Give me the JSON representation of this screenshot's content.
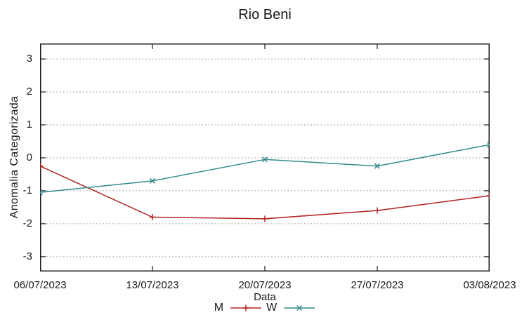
{
  "chart_data": {
    "type": "line",
    "title": "Rio Beni",
    "xlabel": "Data",
    "ylabel": "Anomalia Categorizada",
    "x": [
      "06/07/2023",
      "13/07/2023",
      "20/07/2023",
      "27/07/2023",
      "03/08/2023"
    ],
    "series": [
      {
        "name": "M",
        "marker": "plus",
        "color": "#b22222",
        "values": [
          -0.25,
          -1.8,
          -1.85,
          -1.6,
          -1.15
        ]
      },
      {
        "name": "W",
        "marker": "cross",
        "color": "#348b8b",
        "values": [
          -1.05,
          -0.7,
          -0.05,
          -0.25,
          0.4
        ]
      }
    ],
    "yticks": [
      -3,
      -2,
      -1,
      0,
      1,
      2,
      3
    ],
    "ylim": [
      -3.45,
      3.47
    ],
    "grid": "horizontal-dotted",
    "legend_position": "bottom-center",
    "colors": {
      "axis": "#1a1a1a",
      "grid": "#8a8a8a",
      "text": "#1a1a1a",
      "background": "#ffffff"
    }
  }
}
